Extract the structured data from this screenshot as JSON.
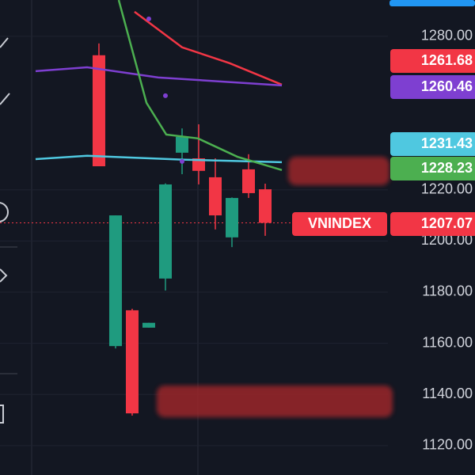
{
  "chart_data": {
    "type": "candlestick",
    "symbol": "VNINDEX",
    "x": [
      0,
      1,
      2,
      3,
      4,
      5,
      6,
      7,
      8,
      9,
      10
    ],
    "open": [
      1272.6,
      1158.9,
      1172.9,
      1166.1,
      1185.3,
      1234.5,
      1232.3,
      1224.9,
      1201.4,
      1228.0,
      1220.2
    ],
    "high": [
      1277.2,
      1210.0,
      1173.5,
      1168.0,
      1222.5,
      1244.0,
      1245.6,
      1232.3,
      1217.0,
      1233.9,
      1222.4
    ],
    "low": [
      1229.2,
      1158.0,
      1131.7,
      1166.1,
      1180.6,
      1226.1,
      1222.1,
      1204.5,
      1197.6,
      1216.8,
      1202.0
    ],
    "close": [
      1229.2,
      1210.0,
      1132.6,
      1168.0,
      1222.1,
      1240.7,
      1227.4,
      1210.0,
      1216.8,
      1218.7,
      1207.07
    ],
    "up_color": "#1f9b7f",
    "down_color": "#f23645",
    "series": [
      {
        "name": "MA-red",
        "color": "#f23645",
        "x": [
          2.14,
          5,
          7.86,
          11
        ],
        "values": [
          1289.6,
          1275.7,
          1269.5,
          1261.1
        ]
      },
      {
        "name": "MA-purple",
        "color": "#7e3fd1",
        "x": [
          -3.81,
          -0.71,
          3.57,
          11
        ],
        "values": [
          1266.4,
          1267.9,
          1263.9,
          1260.8
        ]
      },
      {
        "name": "MA-cyan",
        "color": "#4fc8e0",
        "x": [
          -3.81,
          -0.71,
          5,
          11
        ],
        "values": [
          1232.0,
          1233.3,
          1231.8,
          1230.8
        ]
      },
      {
        "name": "MA-green",
        "color": "#4caf50",
        "x": [
          1.19,
          2.86,
          4.05,
          5.95,
          8.33,
          11
        ],
        "values": [
          1294.2,
          1254.0,
          1241.6,
          1240.1,
          1232.9,
          1227.7
        ]
      }
    ],
    "dots": {
      "color": "#7e3fd1",
      "x": [
        3,
        4,
        5
      ],
      "values": [
        1286.8,
        1256.8,
        1231.1
      ]
    },
    "price_labels": [
      {
        "text": "1261.68",
        "color": "#f23645"
      },
      {
        "text": "1260.46",
        "color": "#7e3fd1"
      },
      {
        "text": "1231.43",
        "color": "#4fc8e0"
      },
      {
        "text": "1228.23",
        "color": "#4caf50"
      },
      {
        "text": "1207.07",
        "color": "#f23645"
      }
    ],
    "last_price": 1207.07,
    "xlim": [
      -5.95,
      17.38
    ],
    "ylim": [
      1108.5,
      1294.2
    ],
    "yticks": [
      {
        "value": 1280,
        "label": "1280.00"
      },
      {
        "value": 1220,
        "label": "1220.00"
      },
      {
        "value": 1200,
        "label": "1200.00"
      },
      {
        "value": 1180,
        "label": "1180.00"
      },
      {
        "value": 1160,
        "label": "1160.00"
      },
      {
        "value": 1140,
        "label": "1140.00"
      },
      {
        "value": 1120,
        "label": "1120.00"
      }
    ],
    "grid": true
  }
}
